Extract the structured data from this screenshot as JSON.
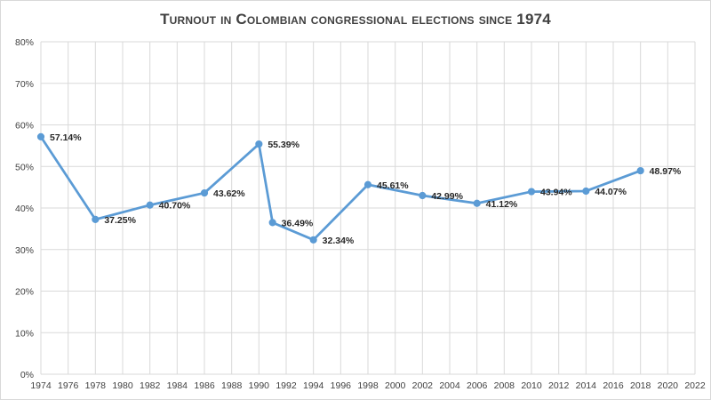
{
  "chart_data": {
    "type": "line",
    "title": "Turnout in Colombian congressional elections since 1974",
    "xlabel": "",
    "ylabel": "",
    "x_ticks": [
      "1974",
      "1976",
      "1978",
      "1980",
      "1982",
      "1984",
      "1986",
      "1988",
      "1990",
      "1992",
      "1994",
      "1996",
      "1998",
      "2000",
      "2002",
      "2004",
      "2006",
      "2008",
      "2010",
      "2012",
      "2014",
      "2016",
      "2018",
      "2020",
      "2022"
    ],
    "y_ticks": [
      "0%",
      "10%",
      "20%",
      "30%",
      "40%",
      "50%",
      "60%",
      "70%",
      "80%"
    ],
    "xlim": [
      1974,
      2022
    ],
    "ylim": [
      0,
      80
    ],
    "grid": true,
    "legend": "none",
    "series": [
      {
        "color": "#5b9bd5",
        "points": [
          {
            "x": 1974,
            "y": 57.14,
            "label": "57.14%"
          },
          {
            "x": 1978,
            "y": 37.25,
            "label": "37.25%"
          },
          {
            "x": 1982,
            "y": 40.7,
            "label": "40.70%"
          },
          {
            "x": 1986,
            "y": 43.62,
            "label": "43.62%"
          },
          {
            "x": 1990,
            "y": 55.39,
            "label": "55.39%"
          },
          {
            "x": 1991,
            "y": 36.49,
            "label": "36.49%"
          },
          {
            "x": 1994,
            "y": 32.34,
            "label": "32.34%"
          },
          {
            "x": 1998,
            "y": 45.61,
            "label": "45.61%"
          },
          {
            "x": 2002,
            "y": 42.99,
            "label": "42.99%"
          },
          {
            "x": 2006,
            "y": 41.12,
            "label": "41.12%"
          },
          {
            "x": 2010,
            "y": 43.94,
            "label": "43.94%"
          },
          {
            "x": 2014,
            "y": 44.07,
            "label": "44.07%"
          },
          {
            "x": 2018,
            "y": 48.97,
            "label": "48.97%"
          }
        ]
      }
    ]
  }
}
